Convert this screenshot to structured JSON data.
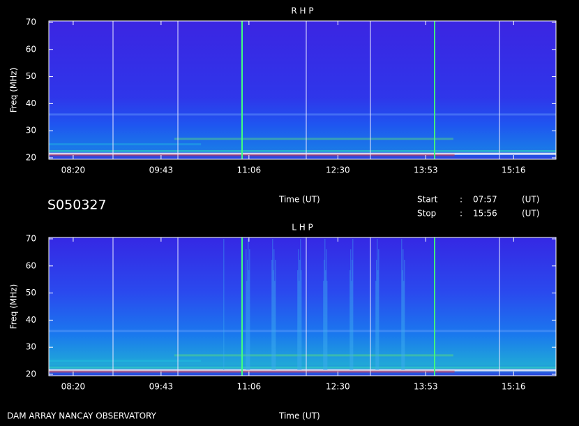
{
  "header": {
    "id": "S050327",
    "time_label": "Time (UT)",
    "start_label": "Start",
    "stop_label": "Stop",
    "sep": ":",
    "start": "07:57",
    "stop": "15:56",
    "unit": "(UT)",
    "footer": "DAM ARRAY  NANCAY OBSERVATORY"
  },
  "chart_data": [
    {
      "type": "spectrogram",
      "title": "R H P",
      "ylabel": "Freq (MHz)",
      "xlabel": "Time (UT)",
      "ylim": [
        20,
        70
      ],
      "yticks": [
        20,
        30,
        40,
        50,
        60,
        70
      ],
      "xlim": [
        477,
        956
      ],
      "xticks": [
        {
          "value": 500,
          "label": "08:20"
        },
        {
          "value": 583,
          "label": "09:43"
        },
        {
          "value": 666,
          "label": "11:06"
        },
        {
          "value": 750,
          "label": "12:30"
        },
        {
          "value": 833,
          "label": "13:53"
        },
        {
          "value": 916,
          "label": "15:16"
        }
      ]
    },
    {
      "type": "spectrogram",
      "title": "L H P",
      "ylabel": "Freq (MHz)",
      "xlabel": "Time (UT)",
      "ylim": [
        20,
        70
      ],
      "yticks": [
        20,
        30,
        40,
        50,
        60,
        70
      ],
      "xlim": [
        477,
        956
      ],
      "xticks": [
        {
          "value": 500,
          "label": "08:20"
        },
        {
          "value": 583,
          "label": "09:43"
        },
        {
          "value": 666,
          "label": "11:06"
        },
        {
          "value": 750,
          "label": "12:30"
        },
        {
          "value": 833,
          "label": "13:53"
        },
        {
          "value": 916,
          "label": "15:16"
        }
      ]
    }
  ]
}
